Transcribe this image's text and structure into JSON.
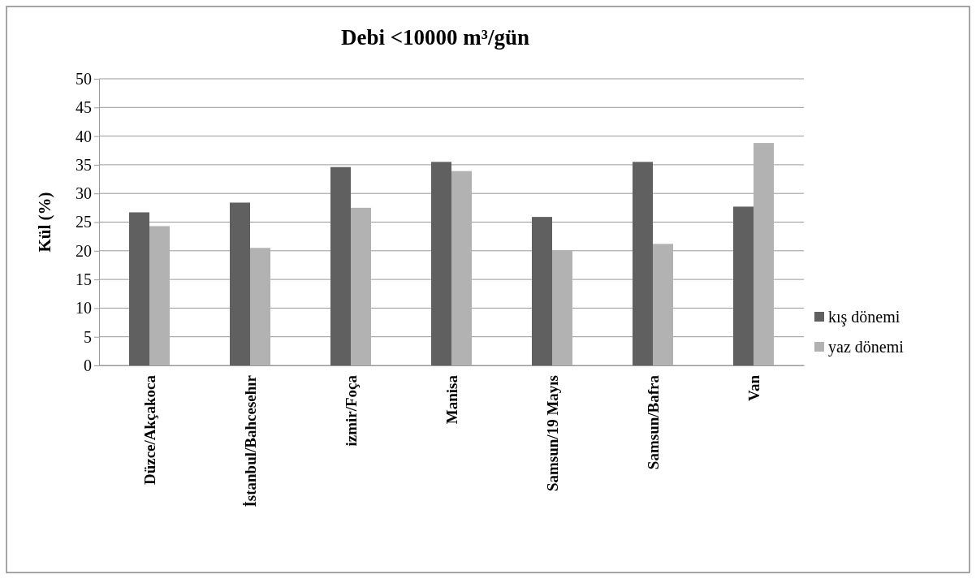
{
  "chart_data": {
    "type": "bar",
    "title": "Debi <10000 m³/gün",
    "ylabel": "Kül (%)",
    "categories": [
      "Düzce/Akçakoca",
      "İstanbul/Bahcesehır",
      "izmir/Foça",
      "Manisa",
      "Samsun/19 Mayıs",
      "Samsun/Bafra",
      "Van"
    ],
    "series": [
      {
        "name": "kış dönemi",
        "color": "#606060",
        "values": [
          26.7,
          28.4,
          34.6,
          35.5,
          25.9,
          35.5,
          27.7
        ]
      },
      {
        "name": "yaz dönemi",
        "color": "#b2b2b2",
        "values": [
          24.3,
          20.5,
          27.5,
          33.9,
          20.1,
          21.2,
          38.8
        ]
      }
    ],
    "ylim": [
      0,
      50
    ],
    "yticks": [
      0,
      5,
      10,
      15,
      20,
      25,
      30,
      35,
      40,
      45,
      50
    ],
    "grid": "y",
    "legend": "right"
  }
}
